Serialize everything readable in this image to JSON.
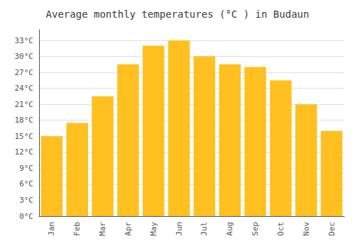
{
  "chart_data": {
    "type": "bar",
    "title": "Average monthly temperatures (°C ) in Budaun",
    "categories": [
      "Jan",
      "Feb",
      "Mar",
      "Apr",
      "May",
      "Jun",
      "Jul",
      "Aug",
      "Sep",
      "Oct",
      "Nov",
      "Dec"
    ],
    "values": [
      15,
      17.5,
      22.5,
      28.5,
      32,
      33,
      30,
      28.5,
      28,
      25.5,
      21,
      16
    ],
    "color": "#FFC020",
    "ylim": [
      0,
      35
    ],
    "yticks": [
      {
        "value": 0,
        "label": "0°C"
      },
      {
        "value": 3,
        "label": "3°C"
      },
      {
        "value": 6,
        "label": "6°C"
      },
      {
        "value": 9,
        "label": "9°C"
      },
      {
        "value": 12,
        "label": "12°C"
      },
      {
        "value": 15,
        "label": "15°C"
      },
      {
        "value": 18,
        "label": "18°C"
      },
      {
        "value": 21,
        "label": "21°C"
      },
      {
        "value": 24,
        "label": "24°C"
      },
      {
        "value": 27,
        "label": "27°C"
      },
      {
        "value": 30,
        "label": "30°C"
      },
      {
        "value": 33,
        "label": "33°C"
      }
    ],
    "grid": true
  }
}
